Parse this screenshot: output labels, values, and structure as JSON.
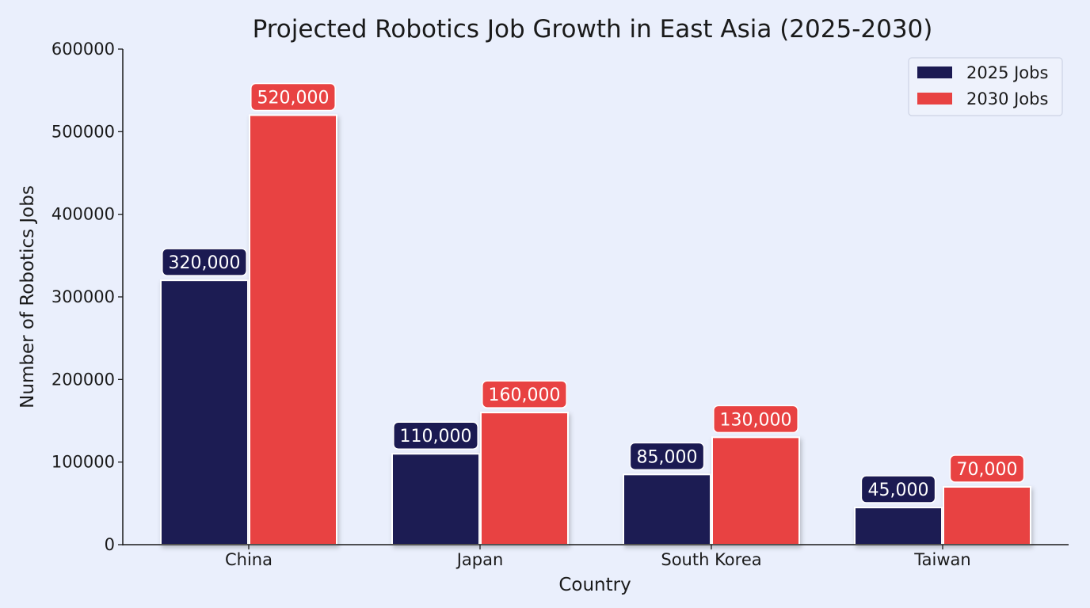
{
  "chart_data": {
    "type": "bar",
    "title": "Projected Robotics Job Growth in East Asia (2025-2030)",
    "xlabel": "Country",
    "ylabel": "Number of Robotics Jobs",
    "categories": [
      "China",
      "Japan",
      "South Korea",
      "Taiwan"
    ],
    "ylim": [
      0,
      600000
    ],
    "yticks": [
      0,
      100000,
      200000,
      300000,
      400000,
      500000,
      600000
    ],
    "ytick_labels": [
      "0",
      "100000",
      "200000",
      "300000",
      "400000",
      "500000",
      "600000"
    ],
    "legend_position": "top-right",
    "grid": false,
    "series": [
      {
        "name": "2025 Jobs",
        "color": "#1b1a52",
        "values": [
          320000,
          110000,
          85000,
          45000
        ],
        "labels": [
          "320,000",
          "110,000",
          "85,000",
          "45,000"
        ]
      },
      {
        "name": "2030 Jobs",
        "color": "#e84242",
        "values": [
          520000,
          160000,
          130000,
          70000
        ],
        "labels": [
          "520,000",
          "160,000",
          "130,000",
          "70,000"
        ]
      }
    ]
  }
}
